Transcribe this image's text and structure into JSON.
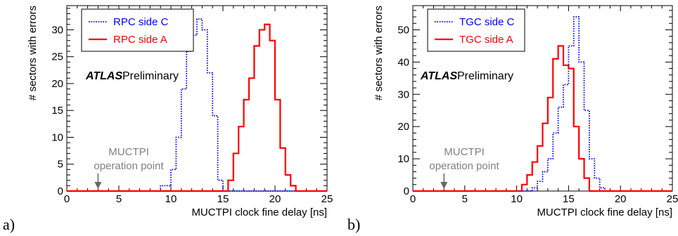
{
  "chart_data": [
    {
      "type": "histogram",
      "panel_label": "a)",
      "xlabel": "MUCTPI clock fine delay [ns]",
      "ylabel": "# sectors with errors",
      "xlim": [
        0,
        25
      ],
      "ylim": [
        0,
        34.5
      ],
      "bin_width": 0.5,
      "xticks": [
        0,
        5,
        10,
        15,
        20,
        25
      ],
      "yticks": [
        0,
        5,
        10,
        15,
        20,
        25,
        30
      ],
      "grid": false,
      "legend_position": "top-left",
      "atlas_label": "ATLAS",
      "atlas_sublabel": "Preliminary",
      "annotation": {
        "line1": "MUCTPI",
        "line2": "operation point",
        "x": 3
      },
      "series": [
        {
          "name": "RPC side C",
          "color": "#0000ff",
          "style": "dotted",
          "x": [
            9.0,
            9.5,
            10.0,
            10.5,
            11.0,
            11.5,
            12.0,
            12.5,
            13.0,
            13.5,
            14.0,
            14.5,
            15.0
          ],
          "values": [
            1,
            1,
            4,
            10,
            19,
            26,
            29,
            32,
            30,
            22,
            14,
            2,
            0
          ]
        },
        {
          "name": "RPC side A",
          "color": "#ff0000",
          "style": "solid",
          "x": [
            15.5,
            16.0,
            16.5,
            17.0,
            17.5,
            18.0,
            18.5,
            19.0,
            19.5,
            20.0,
            20.5,
            21.0,
            21.5
          ],
          "values": [
            2,
            7,
            12,
            17,
            21,
            27,
            30,
            31,
            28,
            17,
            8,
            3,
            1
          ]
        }
      ]
    },
    {
      "type": "histogram",
      "panel_label": "b)",
      "xlabel": "MUCTPI clock fine delay [ns]",
      "ylabel": "# sectors with errors",
      "xlim": [
        0,
        25
      ],
      "ylim": [
        0,
        57.5
      ],
      "bin_width": 0.5,
      "xticks": [
        0,
        5,
        10,
        15,
        20,
        25
      ],
      "yticks": [
        0,
        10,
        20,
        30,
        40,
        50
      ],
      "grid": false,
      "legend_position": "top-left",
      "atlas_label": "ATLAS",
      "atlas_sublabel": "Preliminary",
      "annotation": {
        "line1": "MUCTPI",
        "line2": "operation point",
        "x": 3
      },
      "series": [
        {
          "name": "TGC side C",
          "color": "#0000ff",
          "style": "dotted",
          "x": [
            11.5,
            12.0,
            12.5,
            13.0,
            13.5,
            14.0,
            14.5,
            15.0,
            15.5,
            16.0,
            16.5,
            17.0,
            17.5,
            18.0
          ],
          "values": [
            1,
            3,
            6,
            10,
            18,
            26,
            33,
            45,
            54,
            40,
            25,
            10,
            4,
            1
          ]
        },
        {
          "name": "TGC side A",
          "color": "#ff0000",
          "style": "solid",
          "x": [
            10.5,
            11.0,
            11.5,
            12.0,
            12.5,
            13.0,
            13.5,
            14.0,
            14.5,
            15.0,
            15.5,
            16.0,
            16.5,
            17.0
          ],
          "values": [
            2,
            5,
            9,
            14,
            21,
            29,
            41,
            45,
            39,
            38,
            20,
            10,
            4,
            0
          ]
        }
      ]
    }
  ]
}
